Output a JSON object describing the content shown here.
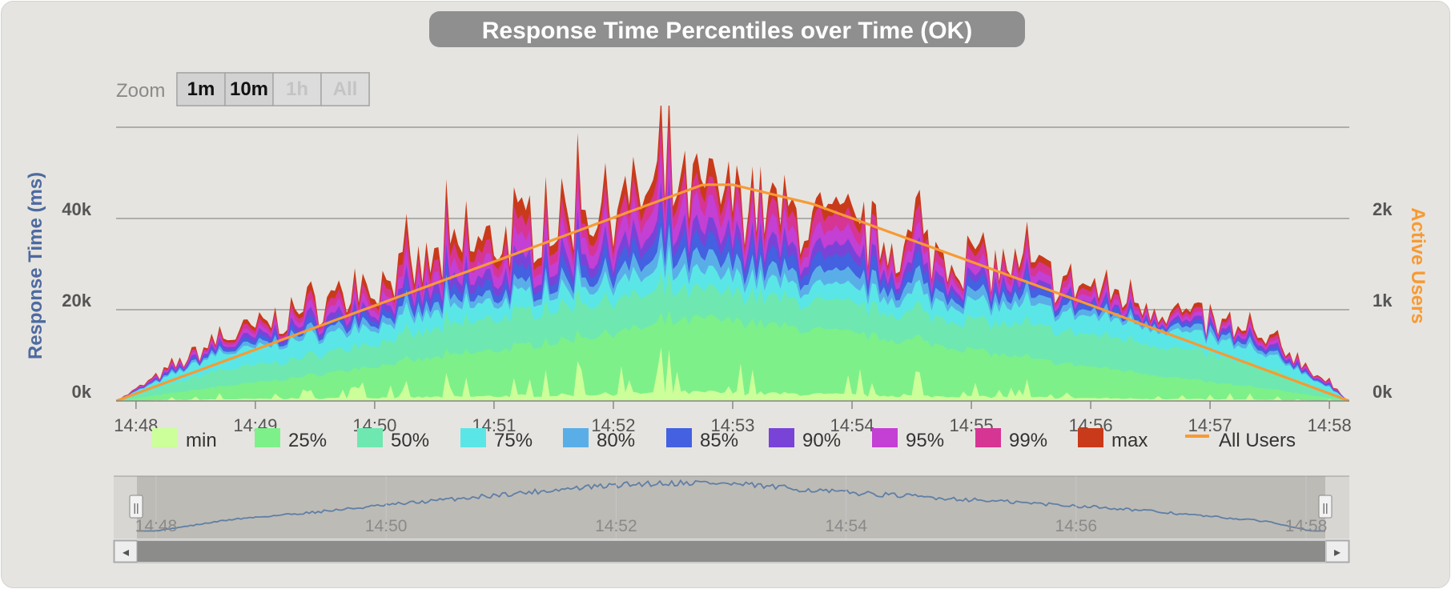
{
  "chart_data": {
    "type": "area",
    "title": "Response Time Percentiles over Time (OK)",
    "ylabel": "Response Time (ms)",
    "y2label": "Active Users",
    "ylim": [
      0,
      60000
    ],
    "y2lim": [
      0,
      3000
    ],
    "yticks": [
      "0k",
      "20k",
      "40k"
    ],
    "y2ticks": [
      "0k",
      "1k",
      "2k"
    ],
    "x_range": [
      "14:47:50",
      "14:58:10"
    ],
    "xticks": [
      "14:48",
      "14:49",
      "14:50",
      "14:51",
      "14:52",
      "14:53",
      "14:54",
      "14:55",
      "14:56",
      "14:57",
      "14:58"
    ],
    "x_anchor_times": [
      "14:47:50",
      "14:48:40",
      "14:49:20",
      "14:50:15",
      "14:51:00",
      "14:51:40",
      "14:52:15",
      "14:52:45",
      "14:53:10",
      "14:53:50",
      "14:54:40",
      "14:55:30",
      "14:56:20",
      "14:57:00",
      "14:57:40",
      "14:58:10"
    ],
    "series": [
      {
        "name": "min",
        "color": "#ccff99",
        "values": [
          0,
          400,
          600,
          900,
          1200,
          1600,
          2000,
          2200,
          2000,
          1600,
          1200,
          900,
          600,
          400,
          200,
          0
        ]
      },
      {
        "name": "25%",
        "color": "#7ef08a",
        "values": [
          0,
          3000,
          5000,
          8500,
          11000,
          13500,
          16000,
          18000,
          17000,
          15000,
          12500,
          9000,
          6500,
          4000,
          2000,
          0
        ]
      },
      {
        "name": "50%",
        "color": "#6ee8b0",
        "values": [
          0,
          6500,
          9000,
          14000,
          18000,
          21000,
          23000,
          24000,
          23000,
          21000,
          18500,
          16000,
          13500,
          10000,
          5500,
          0
        ]
      },
      {
        "name": "75%",
        "color": "#5ae6e6",
        "values": [
          0,
          10000,
          13000,
          17500,
          21500,
          24500,
          27000,
          27500,
          26500,
          24000,
          22000,
          20000,
          17500,
          13500,
          8000,
          0
        ]
      },
      {
        "name": "80%",
        "color": "#5aaee8",
        "values": [
          0,
          10500,
          14000,
          19000,
          23000,
          26500,
          29500,
          30500,
          29000,
          26500,
          24000,
          21500,
          18500,
          14500,
          8500,
          0
        ]
      },
      {
        "name": "85%",
        "color": "#4361e0",
        "values": [
          0,
          11000,
          15000,
          20500,
          25000,
          29000,
          32500,
          33500,
          32000,
          29000,
          26000,
          23000,
          19500,
          15000,
          9000,
          0
        ]
      },
      {
        "name": "90%",
        "color": "#7a43d8",
        "values": [
          0,
          11500,
          16000,
          22000,
          27000,
          31500,
          35000,
          36000,
          34500,
          31000,
          27500,
          24000,
          20000,
          15500,
          9500,
          0
        ]
      },
      {
        "name": "95%",
        "color": "#c43fd4",
        "values": [
          0,
          12000,
          17000,
          24000,
          30000,
          35000,
          39000,
          40000,
          38000,
          33500,
          29500,
          25500,
          21000,
          16000,
          10000,
          0
        ]
      },
      {
        "name": "99%",
        "color": "#d63593",
        "values": [
          0,
          12500,
          18000,
          26000,
          32500,
          38000,
          42000,
          43000,
          41000,
          36000,
          31500,
          27000,
          22000,
          16500,
          10500,
          0
        ]
      },
      {
        "name": "max",
        "color": "#c93a1a",
        "values": [
          0,
          13000,
          19000,
          28000,
          35000,
          41000,
          45000,
          46000,
          43500,
          38000,
          33000,
          28000,
          23000,
          17000,
          11000,
          0
        ]
      },
      {
        "name": "All Users",
        "color": "#f79a33",
        "axis": "right",
        "type": "line",
        "times": [
          "14:47:50",
          "14:52:45",
          "14:53:00",
          "14:53:40",
          "14:56:00",
          "14:58:10"
        ],
        "values": [
          0,
          2370,
          2370,
          2160,
          1050,
          0
        ]
      }
    ],
    "legend": "bottom",
    "grid": true
  },
  "zoom": {
    "label": "Zoom",
    "buttons": [
      "1m",
      "10m",
      "1h",
      "All"
    ],
    "disabled": [
      false,
      false,
      true,
      true
    ]
  },
  "navigator": {
    "ticks": [
      "14:48",
      "14:50",
      "14:52",
      "14:54",
      "14:56",
      "14:58"
    ],
    "handle_glyph": "||",
    "left_arrow": "◂",
    "right_arrow": "▸"
  },
  "colors": {
    "background": "#e6e4e0",
    "left_axis_title": "#4d6aa0",
    "right_axis_title": "#f79a33",
    "title_bg": "#8f8f8f"
  }
}
